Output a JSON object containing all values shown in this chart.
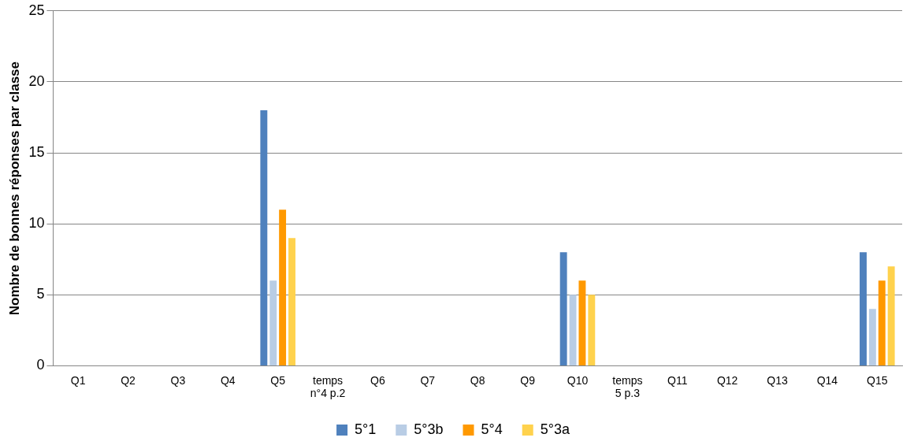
{
  "chart_data": {
    "type": "bar",
    "ylabel": "Nombre de bonnes réponses par classe",
    "categories": [
      "Q1",
      "Q2",
      "Q3",
      "Q4",
      "Q5",
      "temps n°4 p.2",
      "Q6",
      "Q7",
      "Q8",
      "Q9",
      "Q10",
      "temps 5 p.3",
      "Q11",
      "Q12",
      "Q13",
      "Q14",
      "Q15"
    ],
    "series": [
      {
        "name": "5°1",
        "color": "#4f81bd",
        "values": [
          0,
          0,
          0,
          0,
          18,
          0,
          0,
          0,
          0,
          0,
          8,
          0,
          0,
          0,
          0,
          0,
          8
        ]
      },
      {
        "name": "5°3b",
        "color": "#b9cde5",
        "values": [
          0,
          0,
          0,
          0,
          6,
          0,
          0,
          0,
          0,
          0,
          5,
          0,
          0,
          0,
          0,
          0,
          4
        ]
      },
      {
        "name": "5°4",
        "color": "#ff9900",
        "values": [
          0,
          0,
          0,
          0,
          11,
          0,
          0,
          0,
          0,
          0,
          6,
          0,
          0,
          0,
          0,
          0,
          6
        ]
      },
      {
        "name": "5°3a",
        "color": "#ffd24d",
        "values": [
          0,
          0,
          0,
          0,
          9,
          0,
          0,
          0,
          0,
          0,
          5,
          0,
          0,
          0,
          0,
          0,
          7
        ]
      }
    ],
    "ylim": [
      0,
      25
    ],
    "yticks": [
      0,
      5,
      10,
      15,
      20,
      25
    ],
    "grid": "y",
    "legend": "bottom"
  }
}
